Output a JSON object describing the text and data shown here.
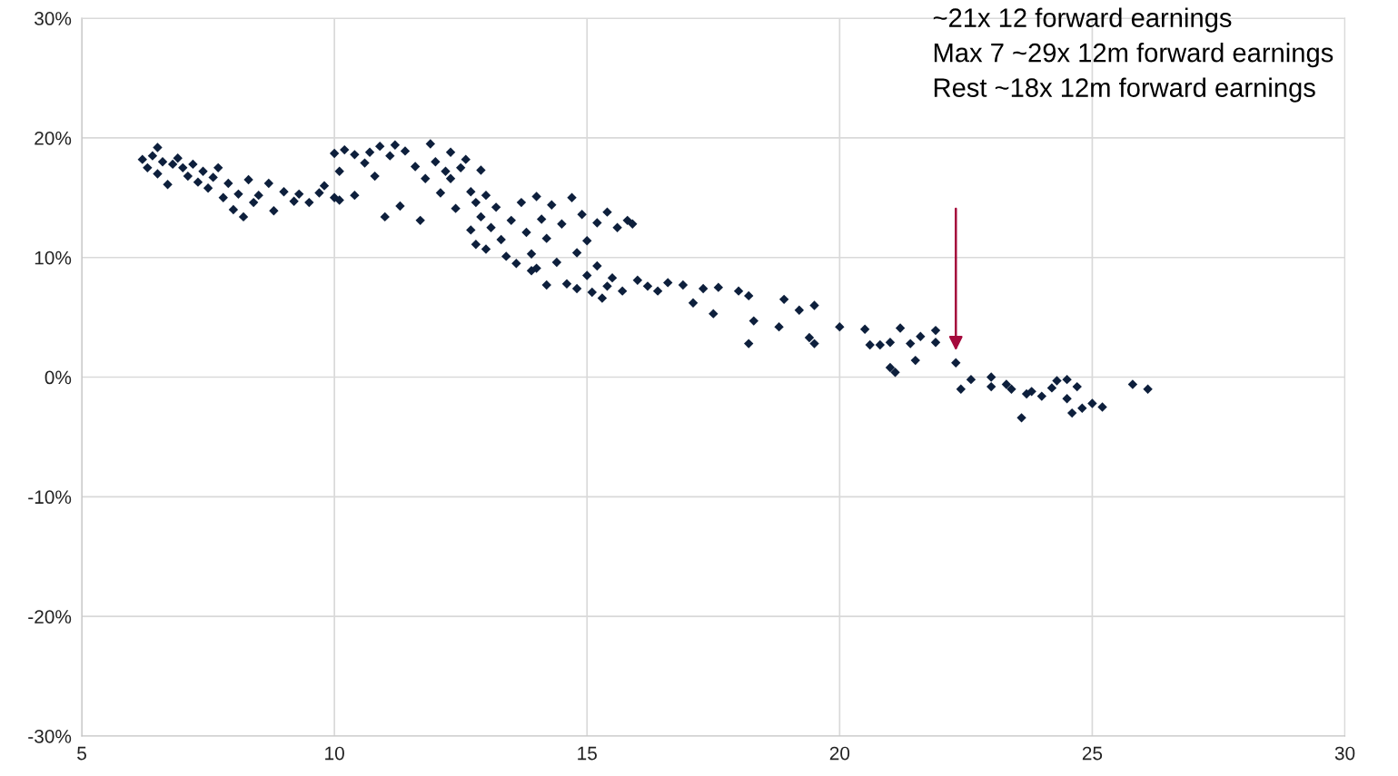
{
  "chart_data": {
    "type": "scatter",
    "marker": "diamond",
    "grid": true,
    "legend": false,
    "xlim": [
      5,
      30
    ],
    "xticks": [
      5,
      10,
      15,
      20,
      25,
      30
    ],
    "ylim": [
      -30,
      30
    ],
    "yticks": [
      {
        "value": -30,
        "label": "-30%"
      },
      {
        "value": -20,
        "label": "-20%"
      },
      {
        "value": -10,
        "label": "-10%"
      },
      {
        "value": 0,
        "label": "0%"
      },
      {
        "value": 10,
        "label": "10%"
      },
      {
        "value": 20,
        "label": "20%"
      },
      {
        "value": 30,
        "label": "30%"
      }
    ],
    "annotations": [
      "~21x 12 forward earnings",
      "Max 7 ~29x 12m forward earnings",
      "Rest ~18x 12m forward earnings"
    ],
    "series": [
      {
        "color": "#0d1f3c",
        "x": [
          6.2,
          6.3,
          6.4,
          6.5,
          6.5,
          6.6,
          6.7,
          6.8,
          6.9,
          7,
          7.1,
          7.2,
          7.3,
          7.4,
          7.5,
          7.6,
          7.7,
          7.8,
          7.9,
          8,
          8.1,
          8.2,
          8.3,
          8.4,
          8.5,
          8.7,
          8.8,
          9.0,
          9.2,
          9.3,
          9.5,
          9.7,
          9.8,
          10,
          10.1,
          10,
          10.1,
          10.2,
          10.4,
          10.4,
          10.6,
          10.7,
          10.8,
          10.9,
          11,
          11.1,
          11.2,
          11.3,
          11.4,
          11.6,
          11.7,
          11.8,
          11.9,
          12,
          12.1,
          12.2,
          12.3,
          12.3,
          12.4,
          12.5,
          12.6,
          12.7,
          12.8,
          12.9,
          13,
          12.7,
          12.8,
          12.9,
          13,
          13.1,
          13.2,
          13.3,
          13.4,
          13.5,
          13.6,
          13.7,
          13.8,
          13.9,
          14,
          14,
          14.1,
          14.2,
          14.3,
          14.4,
          14.5,
          14.6,
          14.7,
          14.8,
          14.9,
          15,
          15,
          15.1,
          15.2,
          15.2,
          15.3,
          15.4,
          15.5,
          15.6,
          15.7,
          15.8,
          15.9,
          15.4,
          14.8,
          14.2,
          13.9,
          16,
          16.2,
          16.4,
          16.6,
          16.9,
          17.1,
          17.3,
          17.5,
          17.6,
          18,
          18.2,
          18.2,
          18.3,
          18.8,
          18.9,
          19.2,
          19.4,
          19.5,
          19.5,
          20,
          20.5,
          20.6,
          20.8,
          21,
          21,
          21.1,
          21.2,
          21.4,
          21.5,
          21.6,
          21.9,
          21.9,
          22.3,
          22.4,
          22.6,
          23,
          23,
          23.3,
          23.4,
          23.6,
          23.7,
          23.8,
          24,
          24.2,
          24.3,
          24.5,
          24.5,
          24.6,
          24.7,
          24.8,
          25,
          25.2,
          25.8,
          26.1
        ],
        "values": [
          18.2,
          17.5,
          18.5,
          19.2,
          17,
          18,
          16.1,
          17.8,
          18.3,
          17.5,
          16.8,
          17.8,
          16.3,
          17.2,
          15.8,
          16.7,
          17.5,
          15,
          16.2,
          14,
          15.3,
          13.4,
          16.5,
          14.6,
          15.2,
          16.2,
          13.9,
          15.5,
          14.7,
          15.3,
          14.6,
          15.4,
          16,
          15,
          14.8,
          18.7,
          17.2,
          19,
          18.6,
          15.2,
          17.9,
          18.8,
          16.8,
          19.3,
          13.4,
          18.5,
          19.4,
          14.3,
          18.9,
          17.6,
          13.1,
          16.6,
          19.5,
          18,
          15.4,
          17.2,
          18.8,
          16.6,
          14.1,
          17.5,
          18.2,
          15.5,
          14.6,
          17.3,
          15.2,
          12.3,
          11.1,
          13.4,
          10.7,
          12.5,
          14.2,
          11.5,
          10.1,
          13.1,
          9.5,
          14.6,
          12.1,
          10.3,
          15.1,
          9.1,
          13.2,
          11.6,
          14.4,
          9.6,
          12.8,
          7.8,
          15,
          10.4,
          13.6,
          8.5,
          11.4,
          7.1,
          12.9,
          9.3,
          6.6,
          13.8,
          8.3,
          12.5,
          7.2,
          13.1,
          12.8,
          7.6,
          7.4,
          7.7,
          8.9,
          8.1,
          7.6,
          7.2,
          7.9,
          7.7,
          6.2,
          7.4,
          5.3,
          7.5,
          7.2,
          6.8,
          2.8,
          4.7,
          4.2,
          6.5,
          5.6,
          3.3,
          2.8,
          6,
          4.2,
          4,
          2.7,
          2.7,
          0.8,
          2.9,
          0.4,
          4.1,
          2.8,
          1.4,
          3.4,
          3.9,
          2.9,
          1.2,
          -1,
          -0.2,
          0,
          -0.8,
          -0.6,
          -1,
          -3.4,
          -1.4,
          -1.2,
          -1.6,
          -0.9,
          -0.3,
          -1.8,
          -0.2,
          -3,
          -0.8,
          -2.6,
          -2.2,
          -2.5,
          -0.6,
          -1
        ]
      }
    ]
  }
}
